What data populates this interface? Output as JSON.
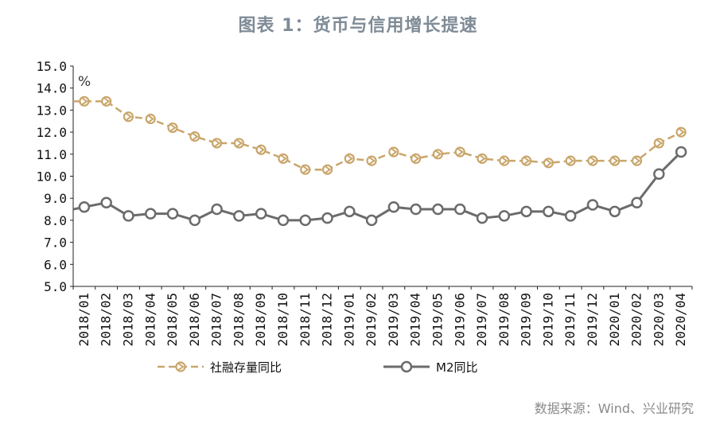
{
  "title": "图表 1：货币与信用增长提速",
  "source": "数据来源：Wind、兴业研究",
  "chart_data": {
    "type": "line",
    "unit_label": "%",
    "categories": [
      "2018/01",
      "2018/02",
      "2018/03",
      "2018/04",
      "2018/05",
      "2018/06",
      "2018/07",
      "2018/08",
      "2018/09",
      "2018/10",
      "2018/11",
      "2018/12",
      "2019/01",
      "2019/02",
      "2019/03",
      "2019/04",
      "2019/05",
      "2019/06",
      "2019/07",
      "2019/08",
      "2019/09",
      "2019/10",
      "2019/11",
      "2019/12",
      "2020/01",
      "2020/02",
      "2020/03",
      "2020/04"
    ],
    "yticks": [
      "5.0",
      "6.0",
      "7.0",
      "8.0",
      "9.0",
      "10.0",
      "11.0",
      "12.0",
      "13.0",
      "14.0",
      "15.0"
    ],
    "ylim": [
      5,
      15
    ],
    "grid": false,
    "legend_position": "bottom",
    "series": [
      {
        "name": "社融存量同比",
        "color": "#c9a66b",
        "style": "dashed",
        "marker": "arrow-circle",
        "values": [
          13.4,
          13.4,
          12.7,
          12.6,
          12.2,
          11.8,
          11.5,
          11.5,
          11.2,
          10.8,
          10.3,
          10.3,
          10.8,
          10.7,
          11.1,
          10.8,
          11.0,
          11.1,
          10.8,
          10.7,
          10.7,
          10.6,
          10.7,
          10.7,
          10.7,
          10.7,
          11.5,
          12.0
        ]
      },
      {
        "name": "M2同比",
        "color": "#6b6b6b",
        "style": "solid",
        "marker": "circle",
        "values": [
          8.6,
          8.8,
          8.2,
          8.3,
          8.3,
          8.0,
          8.5,
          8.2,
          8.3,
          8.0,
          8.0,
          8.1,
          8.4,
          8.0,
          8.6,
          8.5,
          8.5,
          8.5,
          8.1,
          8.2,
          8.4,
          8.4,
          8.2,
          8.7,
          8.4,
          8.8,
          10.1,
          11.1
        ]
      }
    ]
  }
}
